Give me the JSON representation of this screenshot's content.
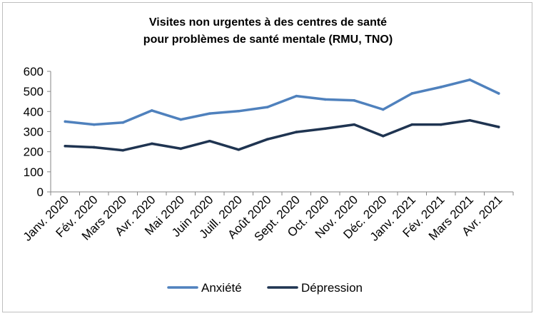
{
  "chart_data": {
    "type": "line",
    "title": [
      "Visites non urgentes à des centres de santé",
      "pour problèmes de santé mentale (RMU, TNO)"
    ],
    "xlabel": "",
    "ylabel": "",
    "categories": [
      "Janv. 2020",
      "Fév. 2020",
      "Mars 2020",
      "Avr. 2020",
      "Mai 2020",
      "Juin 2020",
      "Juill. 2020",
      "Août 2020",
      "Sept. 2020",
      "Oct. 2020",
      "Nov. 2020",
      "Déc. 2020",
      "Janv. 2021",
      "Fév. 2021",
      "Mars 2021",
      "Avr. 2021"
    ],
    "ylim": [
      0,
      600
    ],
    "yticks": [
      0,
      100,
      200,
      300,
      400,
      500,
      600
    ],
    "grid": false,
    "legend_position": "bottom",
    "series": [
      {
        "name": "Anxiété",
        "color": "#4f81bd",
        "values": [
          350,
          335,
          345,
          405,
          360,
          390,
          402,
          422,
          477,
          460,
          455,
          410,
          490,
          522,
          558,
          490
        ]
      },
      {
        "name": "Dépression",
        "color": "#1f3451",
        "values": [
          228,
          222,
          207,
          240,
          215,
          253,
          210,
          262,
          298,
          315,
          335,
          278,
          335,
          335,
          356,
          323
        ]
      }
    ]
  }
}
